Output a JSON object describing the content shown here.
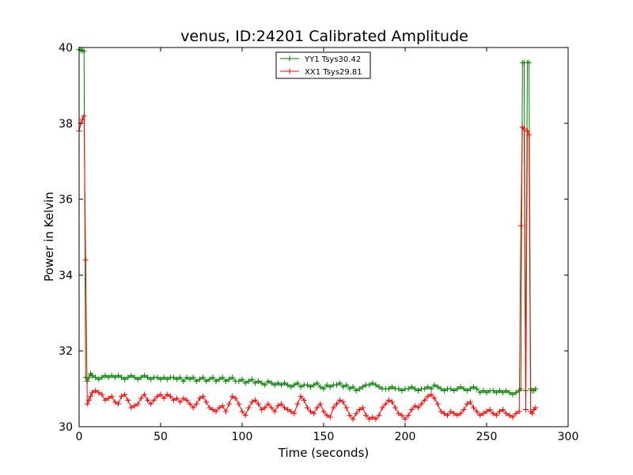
{
  "chart_data": {
    "type": "line",
    "title": "venus, ID:24201 Calibrated Amplitude",
    "xlabel": "Time (seconds)",
    "ylabel": "Power in Kelvin",
    "xlim": [
      0,
      300
    ],
    "ylim": [
      30,
      40
    ],
    "xticks": [
      "0",
      "50",
      "100",
      "150",
      "200",
      "250",
      "300"
    ],
    "yticks": [
      "30",
      "32",
      "34",
      "36",
      "38",
      "40"
    ],
    "grid": false,
    "legend_position": "top-center",
    "series": [
      {
        "name": "YY1 Tsys30.42",
        "color": "#008000",
        "marker": "+",
        "x": [
          0,
          1,
          2,
          3,
          4,
          5,
          6,
          7,
          8,
          10,
          12,
          14,
          16,
          18,
          20,
          22,
          24,
          26,
          28,
          30,
          32,
          34,
          36,
          38,
          40,
          42,
          44,
          46,
          48,
          50,
          52,
          54,
          56,
          58,
          60,
          62,
          64,
          66,
          68,
          70,
          72,
          74,
          76,
          78,
          80,
          82,
          84,
          86,
          88,
          90,
          92,
          94,
          96,
          98,
          100,
          102,
          104,
          106,
          108,
          110,
          112,
          114,
          116,
          118,
          120,
          122,
          124,
          126,
          128,
          130,
          132,
          134,
          136,
          138,
          140,
          142,
          144,
          146,
          148,
          150,
          152,
          154,
          156,
          158,
          160,
          162,
          164,
          166,
          168,
          170,
          172,
          174,
          176,
          178,
          180,
          182,
          184,
          186,
          188,
          190,
          192,
          194,
          196,
          198,
          200,
          202,
          204,
          206,
          208,
          210,
          212,
          214,
          216,
          218,
          220,
          222,
          224,
          226,
          228,
          230,
          232,
          234,
          236,
          238,
          240,
          242,
          244,
          246,
          248,
          250,
          252,
          254,
          256,
          258,
          260,
          262,
          264,
          266,
          268,
          270,
          271,
          272,
          273,
          274,
          275,
          276,
          277,
          278,
          279,
          280
        ],
        "values": [
          39.95,
          39.93,
          39.92,
          39.9,
          31.3,
          31.2,
          31.3,
          31.4,
          31.35,
          31.3,
          31.25,
          31.3,
          31.35,
          31.3,
          31.35,
          31.3,
          31.35,
          31.3,
          31.25,
          31.3,
          31.35,
          31.3,
          31.25,
          31.3,
          31.35,
          31.3,
          31.25,
          31.3,
          31.3,
          31.25,
          31.3,
          31.25,
          31.3,
          31.3,
          31.25,
          31.3,
          31.2,
          31.3,
          31.25,
          31.3,
          31.2,
          31.25,
          31.3,
          31.2,
          31.25,
          31.3,
          31.2,
          31.25,
          31.3,
          31.2,
          31.25,
          31.3,
          31.2,
          31.2,
          31.25,
          31.15,
          31.2,
          31.25,
          31.15,
          31.2,
          31.15,
          31.1,
          31.2,
          31.15,
          31.1,
          31.15,
          31.1,
          31.15,
          31.1,
          31.05,
          31.1,
          31.15,
          31.05,
          31.1,
          31.1,
          31.05,
          31.1,
          31.15,
          31.05,
          31.0,
          31.1,
          31.05,
          31.1,
          31.1,
          31.15,
          31.05,
          31.1,
          31.0,
          31.05,
          30.95,
          31.0,
          31.05,
          31.1,
          31.1,
          31.15,
          31.1,
          31.05,
          31.0,
          31.0,
          31.0,
          31.05,
          31.0,
          31.0,
          30.95,
          31.0,
          31.0,
          31.05,
          31.0,
          30.95,
          31.0,
          31.0,
          31.05,
          31.0,
          31.1,
          31.05,
          31.0,
          30.95,
          31.0,
          31.0,
          30.95,
          31.0,
          31.05,
          31.0,
          30.95,
          31.0,
          31.05,
          31.0,
          30.9,
          30.95,
          30.9,
          30.95,
          30.95,
          30.9,
          30.95,
          30.9,
          30.95,
          30.9,
          30.85,
          30.9,
          30.95,
          31.0,
          39.6,
          39.6,
          30.95,
          39.6,
          39.6,
          31.0,
          30.95,
          30.95,
          31.0
        ]
      },
      {
        "name": "XX1 Tsys29.81",
        "color": "#ff0000",
        "marker": "+",
        "x": [
          0,
          1,
          2,
          3,
          4,
          5,
          6,
          7,
          8,
          10,
          12,
          14,
          16,
          18,
          20,
          22,
          24,
          26,
          28,
          30,
          32,
          34,
          36,
          38,
          40,
          42,
          44,
          46,
          48,
          50,
          52,
          54,
          56,
          58,
          60,
          62,
          64,
          66,
          68,
          70,
          72,
          74,
          76,
          78,
          80,
          82,
          84,
          86,
          88,
          90,
          92,
          94,
          96,
          98,
          100,
          102,
          104,
          106,
          108,
          110,
          112,
          114,
          116,
          118,
          120,
          122,
          124,
          126,
          128,
          130,
          132,
          134,
          136,
          138,
          140,
          142,
          144,
          146,
          148,
          150,
          152,
          154,
          156,
          158,
          160,
          162,
          164,
          166,
          168,
          170,
          172,
          174,
          176,
          178,
          180,
          182,
          184,
          186,
          188,
          190,
          192,
          194,
          196,
          198,
          200,
          202,
          204,
          206,
          208,
          210,
          212,
          214,
          216,
          218,
          220,
          222,
          224,
          226,
          228,
          230,
          232,
          234,
          236,
          238,
          240,
          242,
          244,
          246,
          248,
          250,
          252,
          254,
          256,
          258,
          260,
          262,
          264,
          266,
          268,
          270,
          271,
          272,
          273,
          274,
          275,
          276,
          277,
          278,
          279,
          280
        ],
        "values": [
          37.8,
          38.0,
          38.1,
          38.2,
          34.4,
          30.6,
          30.7,
          30.8,
          30.9,
          30.95,
          30.9,
          30.85,
          30.7,
          30.75,
          30.8,
          30.65,
          30.6,
          30.8,
          30.85,
          30.7,
          30.5,
          30.55,
          30.6,
          30.75,
          30.85,
          30.7,
          30.6,
          30.7,
          30.8,
          30.85,
          30.75,
          30.85,
          30.8,
          30.7,
          30.75,
          30.65,
          30.75,
          30.7,
          30.6,
          30.5,
          30.6,
          30.75,
          30.8,
          30.65,
          30.5,
          30.45,
          30.4,
          30.5,
          30.55,
          30.4,
          30.6,
          30.8,
          30.75,
          30.6,
          30.4,
          30.3,
          30.5,
          30.65,
          30.7,
          30.6,
          30.45,
          30.5,
          30.6,
          30.5,
          30.4,
          30.55,
          30.6,
          30.5,
          30.45,
          30.4,
          30.35,
          30.6,
          30.8,
          30.7,
          30.5,
          30.4,
          30.35,
          30.5,
          30.6,
          30.4,
          30.3,
          30.25,
          30.5,
          30.6,
          30.7,
          30.65,
          30.5,
          30.3,
          30.2,
          30.35,
          30.45,
          30.5,
          30.3,
          30.2,
          30.25,
          30.2,
          30.3,
          30.5,
          30.6,
          30.7,
          30.65,
          30.5,
          30.35,
          30.3,
          30.2,
          30.3,
          30.45,
          30.55,
          30.5,
          30.6,
          30.7,
          30.8,
          30.85,
          30.75,
          30.6,
          30.4,
          30.35,
          30.3,
          30.4,
          30.35,
          30.3,
          30.35,
          30.45,
          30.6,
          30.65,
          30.5,
          30.4,
          30.3,
          30.35,
          30.4,
          30.45,
          30.35,
          30.3,
          30.4,
          30.45,
          30.35,
          30.3,
          30.25,
          30.35,
          30.4,
          35.3,
          37.9,
          37.85,
          30.45,
          37.8,
          37.7,
          30.4,
          30.35,
          30.45,
          30.5
        ]
      }
    ]
  }
}
